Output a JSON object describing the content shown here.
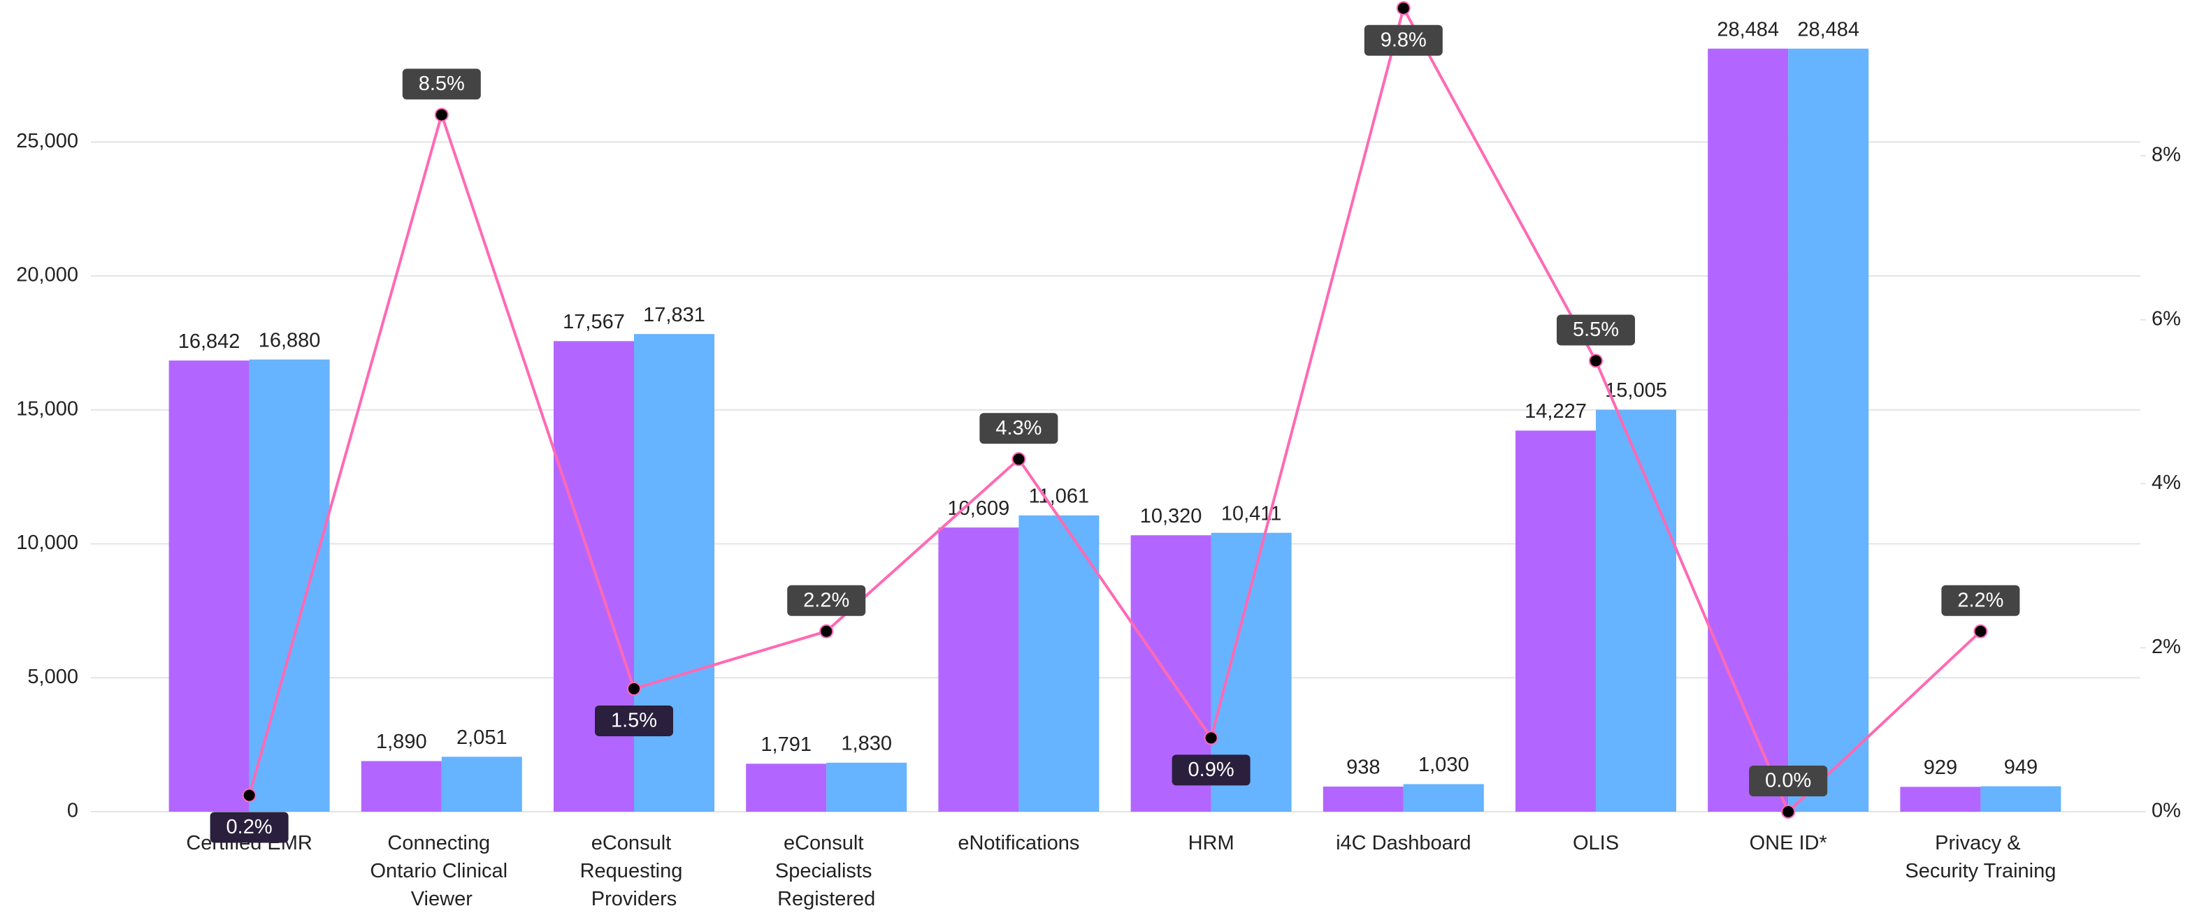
{
  "chart_data": {
    "type": "bar",
    "categories": [
      "Certified EMR",
      "Connecting Ontario Clinical Viewer",
      "eConsult Requesting Providers",
      "eConsult Specialists Registered",
      "eNotifications",
      "HRM",
      "i4C Dashboard",
      "OLIS",
      "ONE ID*",
      "Privacy & Security Training"
    ],
    "series": [
      {
        "color": "#b266ff",
        "values": [
          16842,
          1890,
          17567,
          1791,
          10609,
          10320,
          938,
          14227,
          28484,
          929
        ],
        "value_labels": [
          "16,842",
          "1,890",
          "17,567",
          "1,791",
          "10,609",
          "10,320",
          "938",
          "14,227",
          "28,484",
          "929"
        ]
      },
      {
        "color": "#66b3ff",
        "values": [
          16880,
          2051,
          17831,
          1830,
          11061,
          10411,
          1030,
          15005,
          28484,
          949
        ],
        "value_labels": [
          "16,880",
          "2,051",
          "17,831",
          "1,830",
          "11,061",
          "10,411",
          "1,030",
          "15,005",
          "28,484",
          "949"
        ]
      },
      {
        "type": "line",
        "axis": "y2",
        "color": "#ff69b4",
        "values": [
          0.2,
          8.5,
          1.5,
          2.2,
          4.3,
          0.9,
          9.8,
          5.5,
          0.0,
          2.2
        ],
        "value_labels": [
          "0.2%",
          "8.5%",
          "1.5%",
          "2.2%",
          "4.3%",
          "0.9%",
          "9.8%",
          "5.5%",
          "0.0%",
          "2.2%"
        ]
      }
    ],
    "ylim": [
      0,
      30300
    ],
    "yticks": [
      0,
      {
        "value": 5000,
        "label": "5,000"
      },
      {
        "value": 10000,
        "label": "10,000"
      },
      {
        "value": 15000,
        "label": "15,000"
      },
      {
        "value": 20000,
        "label": "20,000"
      },
      {
        "value": 25000,
        "label": "25,000"
      }
    ],
    "y2lim": [
      0,
      9.9
    ],
    "y2ticks": [
      {
        "value": 0,
        "label": "0%"
      },
      {
        "value": 2,
        "label": "2%"
      },
      {
        "value": 4,
        "label": "4%"
      },
      {
        "value": 6,
        "label": "6%"
      },
      {
        "value": 8,
        "label": "8%"
      }
    ],
    "grid": true
  }
}
